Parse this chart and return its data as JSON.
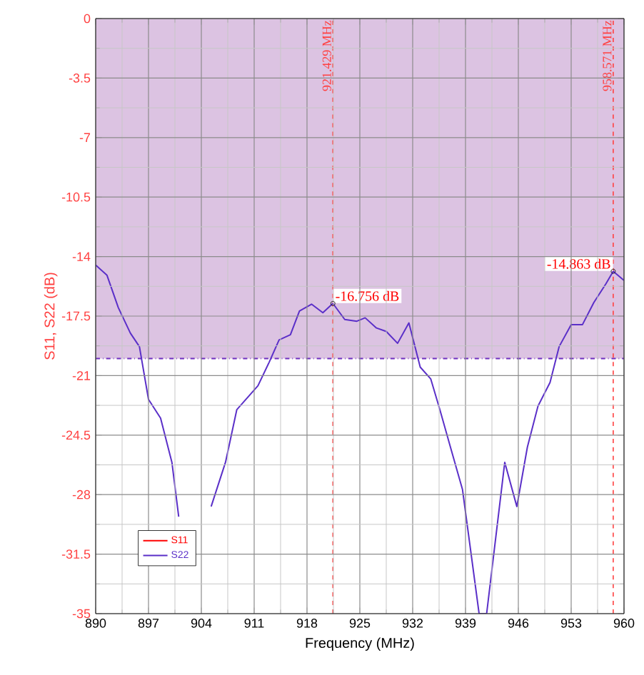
{
  "chart_data": {
    "type": "line",
    "xlabel": "Frequency (MHz)",
    "ylabel": "S11, S22 (dB)",
    "x": [
      890,
      891.5,
      893,
      894.6,
      895.8,
      897,
      898.6,
      900.1,
      901,
      903,
      905.3,
      907.2,
      908.7,
      911.5,
      913,
      914.3,
      915.8,
      917,
      918.6,
      920.1,
      921.429,
      923,
      924.6,
      925.7,
      927.2,
      928.5,
      930,
      931.5,
      933,
      934.4,
      935.6,
      937,
      938.6,
      940.8,
      941.8,
      944.2,
      945.8,
      947.2,
      948.6,
      950.2,
      951.4,
      953,
      954.5,
      956,
      957.6,
      958.571,
      960
    ],
    "series": [
      {
        "name": "S11",
        "color": "#ff0000",
        "values": [
          null,
          null,
          null,
          null,
          null,
          null,
          null,
          null,
          null,
          null,
          null,
          null,
          null,
          null,
          null,
          null,
          null,
          null,
          null,
          null,
          null,
          null,
          null,
          null,
          null,
          null,
          null,
          null,
          null,
          null,
          null,
          null,
          null,
          null,
          null,
          null,
          null,
          null,
          null,
          null,
          null,
          null,
          null,
          null,
          null,
          null,
          null
        ]
      },
      {
        "name": "S22",
        "color": "#5a2fc8",
        "values": [
          -14.5,
          -15.1,
          -17.0,
          -18.5,
          -19.3,
          -22.4,
          -23.5,
          -26.1,
          -29.3,
          null,
          -28.7,
          -26.1,
          -23.0,
          -21.6,
          -20.2,
          -18.9,
          -18.6,
          -17.2,
          -16.8,
          -17.3,
          -16.756,
          -17.7,
          -17.8,
          -17.6,
          -18.2,
          -18.4,
          -19.1,
          -17.9,
          -20.5,
          -21.2,
          -23.0,
          -25.2,
          -27.7,
          -35,
          -35,
          -26.1,
          -28.7,
          -25.2,
          -22.8,
          -21.4,
          -19.3,
          -18.0,
          -18.0,
          -16.7,
          -15.6,
          -14.863,
          -15.4
        ]
      }
    ],
    "xlim": [
      890,
      960
    ],
    "xticks": [
      890,
      897,
      904,
      911,
      918,
      925,
      932,
      939,
      946,
      953,
      960
    ],
    "ylim": [
      -35,
      0
    ],
    "yticks": [
      -35,
      -31.5,
      -28,
      -24.5,
      -21,
      -17.5,
      -14,
      -10.5,
      -7,
      -3.5,
      0
    ],
    "grid": true,
    "legend": "bottom left",
    "marker": "none",
    "line_style": "solid",
    "bands": [
      {
        "axis": "y",
        "from": -20,
        "to": 0,
        "color": "#dcc3e2"
      }
    ],
    "ref_lines": [
      {
        "axis": "y",
        "value": -20,
        "color": "#7030c0",
        "line_style": "dashdot"
      },
      {
        "axis": "x",
        "value": 921.429,
        "label": "921.429 MHz",
        "color": "#ff4040",
        "line_style": "dashed"
      },
      {
        "axis": "x",
        "value": 958.571,
        "label": "958.571 MHz",
        "color": "#ff4040",
        "line_style": "dashed"
      }
    ],
    "annotations": [
      {
        "text": "-16.756 dB",
        "x": 921.429,
        "y": -16.756
      },
      {
        "text": "-14.863 dB",
        "x": 958.571,
        "y": -14.863
      }
    ]
  }
}
